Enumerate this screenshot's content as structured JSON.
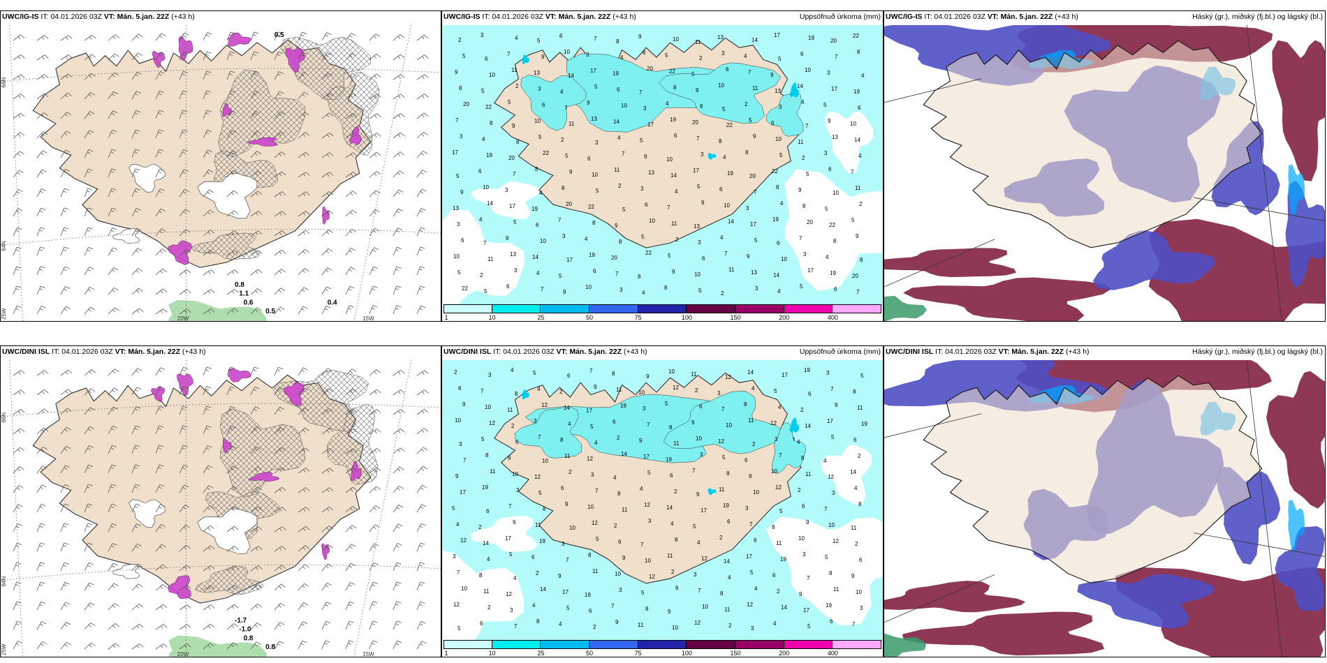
{
  "panels": [
    {
      "id": "p1",
      "model": "UWC/IG-IS",
      "it_label": "IT:",
      "it_value": "04.01.2026 03Z",
      "vt_label": "VT:",
      "vt_value": "Mán. 5.jan. 22Z",
      "lead": "(+43 h)",
      "right_title": "",
      "type": "wind",
      "grid_labels": [
        "66N",
        "64N",
        "25W",
        "20W",
        "15W"
      ],
      "value_labels": [
        "0.8",
        "1.1",
        "0.6",
        "0.5",
        "0.4",
        "0.5"
      ]
    },
    {
      "id": "p2",
      "model": "UWC/IG-IS",
      "it_label": "IT:",
      "it_value": "04.01.2026 03Z",
      "vt_label": "VT:",
      "vt_value": "Mán. 5.jan. 22Z",
      "lead": "(+43 h)",
      "right_title": "Uppsöfnuð úrkoma (mm)",
      "type": "precip"
    },
    {
      "id": "p3",
      "model": "UWC/IG-IS",
      "it_label": "IT:",
      "it_value": "04.01.2026 03Z",
      "vt_label": "VT:",
      "vt_value": "Mán. 5.jan. 22Z",
      "lead": "(+43 h)",
      "right_title": "Háský (gr.), miðský (fj.bl.) og lágský (bl.)",
      "type": "cloud"
    },
    {
      "id": "p4",
      "model": "UWC/DINI ISL",
      "it_label": "IT:",
      "it_value": "04.01.2026 03Z",
      "vt_label": "VT:",
      "vt_value": "Mán. 5.jan. 22Z",
      "lead": "(+43 h)",
      "right_title": "",
      "type": "wind",
      "grid_labels": [
        "66N",
        "64N",
        "25W",
        "20W",
        "15W"
      ],
      "value_labels": [
        "-1.7",
        "-1.0",
        "0.8",
        "0.8"
      ]
    },
    {
      "id": "p5",
      "model": "UWC/DINI ISL",
      "it_label": "IT:",
      "it_value": "04.01.2026 03Z",
      "vt_label": "VT:",
      "vt_value": "Mán. 5.jan. 22Z",
      "lead": "(+43 h)",
      "right_title": "Uppsöfnuð úrkoma (mm)",
      "type": "precip"
    },
    {
      "id": "p6",
      "model": "UWC/DINI ISL",
      "it_label": "IT:",
      "it_value": "04.01.2026 03Z",
      "vt_label": "VT:",
      "vt_value": "Mán. 5.jan. 22Z",
      "lead": "(+43 h)",
      "right_title": "Háský (gr.), miðský (fj.bl.) og lágský (bl.)",
      "type": "cloud"
    }
  ],
  "precip_colorbar": {
    "labels": [
      "1",
      "10",
      "25",
      "50",
      "75",
      "100",
      "150",
      "200",
      "400"
    ],
    "colors": [
      "#ccffff",
      "#00eeee",
      "#00bbee",
      "#3366ee",
      "#2222aa",
      "#660044",
      "#990066",
      "#ee00aa",
      "#ffaaff"
    ]
  },
  "precip_numbers_top": [
    "2",
    "3",
    "4",
    "5",
    "6",
    "7",
    "8",
    "9",
    "10",
    "11",
    "13",
    "14",
    "17",
    "19",
    "20",
    "22",
    "5",
    "6",
    "7",
    "9",
    "10",
    "3",
    "4",
    "8",
    "5"
  ],
  "precip_numbers_bottom": [
    "2",
    "3",
    "4",
    "5",
    "6",
    "7",
    "8",
    "9",
    "10",
    "11",
    "12",
    "14",
    "17",
    "19",
    "3",
    "5",
    "6",
    "7",
    "8",
    "4",
    "2",
    "9",
    "11",
    "10",
    "12"
  ],
  "colors": {
    "land": "#efdfcb",
    "sea_precip": "#b3fafa",
    "precip_light": "#7ff0f0",
    "cloud_high": "#7a1538",
    "cloud_mid": "#4f4fc4",
    "cloud_low": "#00aaff",
    "wind_purple": "#cc44cc",
    "wind_green": "#9ad49a",
    "barb": "#555555"
  }
}
